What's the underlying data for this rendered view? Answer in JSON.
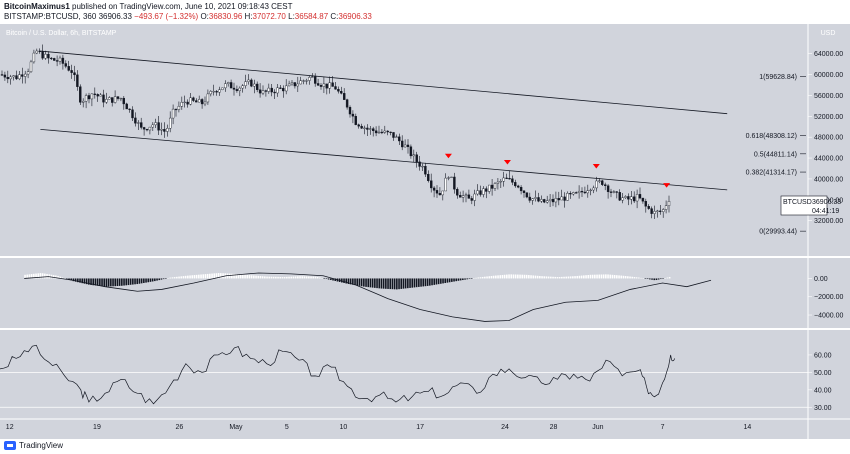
{
  "header": {
    "author": "BitcoinMaximus1",
    "published": "published on TradingView.com, June 10, 2021 09:18:43 CEST",
    "symbol": "BITSTAMP:BTCUSD, 360",
    "price": "36906.33",
    "change": "−493.67 (−1.32%)",
    "o_label": "O:",
    "o_value": "36830.96",
    "h_label": "H:",
    "h_value": "37072.70",
    "l_label": "L:",
    "l_value": "36584.87",
    "c_label": "C:",
    "c_value": "36906.33"
  },
  "footer": {
    "brand": "TradingView"
  },
  "colors": {
    "background": "#d1d4dc",
    "candle": "#131722",
    "marker": "#ff0000",
    "separator": "#ffffff"
  },
  "chart_data": {
    "type": "candlestick",
    "title": "Bitcoin / U.S. Dollar, 6h, BITSTAMP",
    "currency_label": "USD",
    "price_axis": {
      "ylim": [
        26000,
        67000
      ],
      "ticks": [
        "64000.00",
        "60000.00",
        "56000.00",
        "52000.00",
        "48000.00",
        "44000.00",
        "40000.00",
        "36000.00",
        "32000.00"
      ]
    },
    "x_ticks": [
      "12",
      "19",
      "26",
      "May",
      "5",
      "10",
      "17",
      "24",
      "28",
      "Jun",
      "7",
      "14"
    ],
    "current_price_label": {
      "symbol": "BTCUSD",
      "price": "36906.33",
      "countdown": "04:41:19"
    },
    "fib_levels": [
      {
        "label": "1(59628.84)",
        "value": 59628.84
      },
      {
        "label": "0.618(48308.12)",
        "value": 48308.12
      },
      {
        "label": "0.5(44811.14)",
        "value": 44811.14
      },
      {
        "label": "0.382(41314.17)",
        "value": 41314.17
      },
      {
        "label": "0(29993.44)",
        "value": 29993.44
      }
    ],
    "channel": {
      "upper": [
        [
          0.05,
          64500
        ],
        [
          0.9,
          52500
        ]
      ],
      "lower": [
        [
          0.05,
          49500
        ],
        [
          0.9,
          37900
        ]
      ]
    },
    "markers_x": [
      0.555,
      0.628,
      0.738,
      0.825
    ],
    "price_path": [
      [
        0.0,
        60000
      ],
      [
        0.02,
        59500
      ],
      [
        0.035,
        61000
      ],
      [
        0.045,
        64500
      ],
      [
        0.06,
        63000
      ],
      [
        0.075,
        62500
      ],
      [
        0.09,
        60500
      ],
      [
        0.1,
        55000
      ],
      [
        0.115,
        56500
      ],
      [
        0.13,
        55000
      ],
      [
        0.15,
        55500
      ],
      [
        0.165,
        52000
      ],
      [
        0.175,
        49500
      ],
      [
        0.19,
        50500
      ],
      [
        0.205,
        49000
      ],
      [
        0.215,
        53000
      ],
      [
        0.23,
        55000
      ],
      [
        0.25,
        54500
      ],
      [
        0.265,
        57000
      ],
      [
        0.28,
        58000
      ],
      [
        0.295,
        57500
      ],
      [
        0.31,
        58500
      ],
      [
        0.325,
        56500
      ],
      [
        0.34,
        57000
      ],
      [
        0.355,
        57500
      ],
      [
        0.37,
        58500
      ],
      [
        0.385,
        59500
      ],
      [
        0.4,
        58000
      ],
      [
        0.415,
        57500
      ],
      [
        0.43,
        54000
      ],
      [
        0.44,
        51000
      ],
      [
        0.455,
        49500
      ],
      [
        0.47,
        49000
      ],
      [
        0.485,
        48500
      ],
      [
        0.5,
        46500
      ],
      [
        0.515,
        43500
      ],
      [
        0.525,
        42000
      ],
      [
        0.535,
        38500
      ],
      [
        0.545,
        37000
      ],
      [
        0.555,
        41000
      ],
      [
        0.565,
        37500
      ],
      [
        0.58,
        36000
      ],
      [
        0.595,
        37500
      ],
      [
        0.61,
        38500
      ],
      [
        0.625,
        40000
      ],
      [
        0.64,
        39000
      ],
      [
        0.655,
        36500
      ],
      [
        0.67,
        35500
      ],
      [
        0.685,
        35800
      ],
      [
        0.7,
        36500
      ],
      [
        0.715,
        37000
      ],
      [
        0.73,
        38500
      ],
      [
        0.745,
        39500
      ],
      [
        0.76,
        37000
      ],
      [
        0.775,
        36000
      ],
      [
        0.79,
        36500
      ],
      [
        0.8,
        34500
      ],
      [
        0.81,
        33500
      ],
      [
        0.82,
        33800
      ],
      [
        0.83,
        36906
      ]
    ],
    "macd": {
      "ticks": [
        "0.00",
        "−2000.00",
        "−4000.00"
      ],
      "ylim": [
        -5200,
        1800
      ],
      "histogram": [
        [
          0.03,
          400
        ],
        [
          0.05,
          600
        ],
        [
          0.07,
          300
        ],
        [
          0.09,
          -300
        ],
        [
          0.11,
          -700
        ],
        [
          0.13,
          -900
        ],
        [
          0.15,
          -800
        ],
        [
          0.17,
          -600
        ],
        [
          0.19,
          -300
        ],
        [
          0.21,
          100
        ],
        [
          0.23,
          300
        ],
        [
          0.25,
          450
        ],
        [
          0.27,
          600
        ],
        [
          0.29,
          500
        ],
        [
          0.31,
          350
        ],
        [
          0.33,
          200
        ],
        [
          0.35,
          150
        ],
        [
          0.37,
          250
        ],
        [
          0.39,
          200
        ],
        [
          0.41,
          -200
        ],
        [
          0.43,
          -600
        ],
        [
          0.45,
          -900
        ],
        [
          0.47,
          -1100
        ],
        [
          0.49,
          -1200
        ],
        [
          0.51,
          -1000
        ],
        [
          0.53,
          -800
        ],
        [
          0.55,
          -500
        ],
        [
          0.57,
          -200
        ],
        [
          0.59,
          100
        ],
        [
          0.61,
          300
        ],
        [
          0.63,
          450
        ],
        [
          0.65,
          400
        ],
        [
          0.67,
          250
        ],
        [
          0.69,
          150
        ],
        [
          0.71,
          250
        ],
        [
          0.73,
          400
        ],
        [
          0.75,
          450
        ],
        [
          0.77,
          300
        ],
        [
          0.79,
          100
        ],
        [
          0.81,
          -200
        ],
        [
          0.83,
          200
        ]
      ],
      "signal": [
        [
          0.03,
          0
        ],
        [
          0.06,
          200
        ],
        [
          0.09,
          -200
        ],
        [
          0.13,
          -900
        ],
        [
          0.17,
          -1400
        ],
        [
          0.2,
          -1200
        ],
        [
          0.24,
          -500
        ],
        [
          0.28,
          300
        ],
        [
          0.32,
          600
        ],
        [
          0.36,
          500
        ],
        [
          0.4,
          300
        ],
        [
          0.44,
          -700
        ],
        [
          0.48,
          -2200
        ],
        [
          0.52,
          -3400
        ],
        [
          0.56,
          -4200
        ],
        [
          0.6,
          -4700
        ],
        [
          0.63,
          -4600
        ],
        [
          0.66,
          -3400
        ],
        [
          0.7,
          -2600
        ],
        [
          0.74,
          -2400
        ],
        [
          0.78,
          -1200
        ],
        [
          0.82,
          -500
        ],
        [
          0.85,
          -900
        ],
        [
          0.88,
          -200
        ]
      ]
    },
    "rsi": {
      "ticks": [
        "60.00",
        "50.00",
        "40.00",
        "30.00"
      ],
      "ylim": [
        25,
        72
      ],
      "bands": [
        50,
        30
      ],
      "values": [
        [
          0.0,
          52
        ],
        [
          0.02,
          58
        ],
        [
          0.04,
          65
        ],
        [
          0.06,
          56
        ],
        [
          0.08,
          48
        ],
        [
          0.1,
          40
        ],
        [
          0.11,
          33
        ],
        [
          0.13,
          38
        ],
        [
          0.15,
          46
        ],
        [
          0.17,
          38
        ],
        [
          0.19,
          32
        ],
        [
          0.21,
          42
        ],
        [
          0.23,
          55
        ],
        [
          0.25,
          50
        ],
        [
          0.27,
          60
        ],
        [
          0.29,
          64
        ],
        [
          0.31,
          58
        ],
        [
          0.33,
          55
        ],
        [
          0.35,
          62
        ],
        [
          0.37,
          57
        ],
        [
          0.39,
          48
        ],
        [
          0.41,
          53
        ],
        [
          0.43,
          42
        ],
        [
          0.45,
          35
        ],
        [
          0.47,
          37
        ],
        [
          0.49,
          33
        ],
        [
          0.51,
          36
        ],
        [
          0.53,
          39
        ],
        [
          0.55,
          37
        ],
        [
          0.57,
          44
        ],
        [
          0.59,
          38
        ],
        [
          0.61,
          49
        ],
        [
          0.63,
          52
        ],
        [
          0.65,
          47
        ],
        [
          0.67,
          44
        ],
        [
          0.69,
          46
        ],
        [
          0.71,
          49
        ],
        [
          0.73,
          45
        ],
        [
          0.75,
          57
        ],
        [
          0.77,
          48
        ],
        [
          0.79,
          51
        ],
        [
          0.8,
          42
        ],
        [
          0.81,
          36
        ],
        [
          0.82,
          44
        ],
        [
          0.83,
          60
        ],
        [
          0.835,
          58
        ]
      ]
    }
  }
}
